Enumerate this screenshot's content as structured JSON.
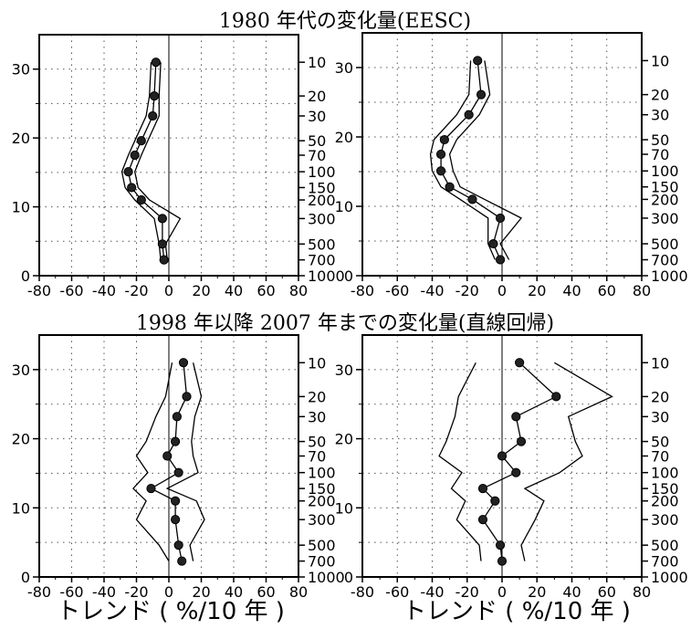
{
  "titles": {
    "top": "1980 年代の変化量(EESC)",
    "bottom": "1998 年以降 2007 年までの変化量(直線回帰)"
  },
  "xlabels": [
    "トレンド ( %/10 年 )",
    "トレンド ( %/10 年 )"
  ],
  "chart_data": [
    {
      "type": "line",
      "xlim": [
        -80,
        80
      ],
      "ylim": [
        0,
        35
      ],
      "x_ticks": [
        "-80",
        "-60",
        "-40",
        "-20",
        "0",
        "20",
        "40",
        "60",
        "80"
      ],
      "y_ticks": [
        "0",
        "10",
        "20",
        "30"
      ],
      "pressure_ticks": [
        {
          "label": "10",
          "alt": 31
        },
        {
          "label": "20",
          "alt": 26.1
        },
        {
          "label": "30",
          "alt": 23.2
        },
        {
          "label": "50",
          "alt": 19.6
        },
        {
          "label": "70",
          "alt": 17.5
        },
        {
          "label": "100",
          "alt": 15.1
        },
        {
          "label": "150",
          "alt": 12.8
        },
        {
          "label": "200",
          "alt": 11
        },
        {
          "label": "300",
          "alt": 8.3
        },
        {
          "label": "500",
          "alt": 4.6
        },
        {
          "label": "700",
          "alt": 2.3
        },
        {
          "label": "1000",
          "alt": 0
        }
      ],
      "grid": true,
      "series": [
        {
          "role": "estimate",
          "x": [
            -8,
            -9,
            -10,
            -17,
            -21,
            -25,
            -23,
            -17,
            -4,
            -4,
            -3
          ],
          "y": [
            31,
            26.1,
            23.2,
            19.6,
            17.5,
            15.1,
            12.8,
            11,
            8.3,
            4.6,
            2.3
          ]
        },
        {
          "role": "lower",
          "x": [
            -11,
            -12,
            -14,
            -21,
            -25,
            -29,
            -27,
            -21,
            -9,
            -6,
            -5
          ],
          "y": [
            31,
            26.1,
            23.2,
            19.6,
            17.5,
            15.1,
            12.8,
            11,
            8.3,
            4.6,
            2.3
          ]
        },
        {
          "role": "upper",
          "x": [
            -5,
            -6,
            -6,
            -13,
            -17,
            -21,
            -19,
            -12,
            7,
            -2,
            -1
          ],
          "y": [
            31,
            26.1,
            23.2,
            19.6,
            17.5,
            15.1,
            12.8,
            11,
            8.3,
            4.6,
            2.3
          ]
        }
      ]
    },
    {
      "type": "line",
      "xlim": [
        -80,
        80
      ],
      "ylim": [
        0,
        35
      ],
      "x_ticks": [
        "-80",
        "-60",
        "-40",
        "-20",
        "0",
        "20",
        "40",
        "60",
        "80"
      ],
      "y_ticks": [
        "0",
        "10",
        "20",
        "30"
      ],
      "pressure_ticks": [
        {
          "label": "10",
          "alt": 31
        },
        {
          "label": "20",
          "alt": 26.1
        },
        {
          "label": "30",
          "alt": 23.2
        },
        {
          "label": "50",
          "alt": 19.6
        },
        {
          "label": "70",
          "alt": 17.5
        },
        {
          "label": "100",
          "alt": 15.1
        },
        {
          "label": "150",
          "alt": 12.8
        },
        {
          "label": "200",
          "alt": 11
        },
        {
          "label": "300",
          "alt": 8.3
        },
        {
          "label": "500",
          "alt": 4.6
        },
        {
          "label": "700",
          "alt": 2.3
        },
        {
          "label": "1000",
          "alt": 0
        }
      ],
      "grid": true,
      "series": [
        {
          "role": "estimate",
          "x": [
            -14,
            -12,
            -19,
            -33,
            -35,
            -35,
            -30,
            -17,
            -1,
            -5,
            -1
          ],
          "y": [
            31,
            26.1,
            23.2,
            19.6,
            17.5,
            15.1,
            12.8,
            11,
            8.3,
            4.6,
            2.3
          ]
        },
        {
          "role": "lower",
          "x": [
            -18,
            -19,
            -26,
            -39,
            -41,
            -40,
            -35,
            -24,
            -8,
            -8,
            -4
          ],
          "y": [
            31,
            26.1,
            23.2,
            19.6,
            17.5,
            15.1,
            12.8,
            11,
            8.3,
            4.6,
            2.3
          ]
        },
        {
          "role": "upper",
          "x": [
            -10,
            -7,
            -13,
            -26,
            -30,
            -28,
            -24,
            -10,
            11,
            -1,
            4
          ],
          "y": [
            31,
            26.1,
            23.2,
            19.6,
            17.5,
            15.1,
            12.8,
            11,
            8.3,
            4.6,
            2.3
          ]
        }
      ]
    },
    {
      "type": "line",
      "xlim": [
        -80,
        80
      ],
      "ylim": [
        0,
        35
      ],
      "x_ticks": [
        "-80",
        "-60",
        "-40",
        "-20",
        "0",
        "20",
        "40",
        "60",
        "80"
      ],
      "y_ticks": [
        "0",
        "10",
        "20",
        "30"
      ],
      "pressure_ticks": [
        {
          "label": "10",
          "alt": 31
        },
        {
          "label": "20",
          "alt": 26.1
        },
        {
          "label": "30",
          "alt": 23.2
        },
        {
          "label": "50",
          "alt": 19.6
        },
        {
          "label": "70",
          "alt": 17.5
        },
        {
          "label": "100",
          "alt": 15.1
        },
        {
          "label": "150",
          "alt": 12.8
        },
        {
          "label": "200",
          "alt": 11
        },
        {
          "label": "300",
          "alt": 8.3
        },
        {
          "label": "500",
          "alt": 4.6
        },
        {
          "label": "700",
          "alt": 2.3
        },
        {
          "label": "1000",
          "alt": 0
        }
      ],
      "grid": true,
      "series": [
        {
          "role": "estimate",
          "x": [
            9,
            11,
            5,
            4,
            -1,
            6,
            -11,
            4,
            4,
            6,
            8
          ],
          "y": [
            31,
            26.1,
            23.2,
            19.6,
            17.5,
            15.1,
            12.8,
            11,
            8.3,
            4.6,
            2.3
          ]
        },
        {
          "role": "lower",
          "x": [
            2,
            -2,
            -8,
            -14,
            -20,
            -13,
            -22,
            -14,
            -20,
            -6,
            0
          ],
          "y": [
            31,
            26.1,
            23.2,
            19.6,
            17.5,
            15.1,
            12.8,
            11,
            8.3,
            4.6,
            2.3
          ]
        },
        {
          "role": "upper",
          "x": [
            15,
            20,
            16,
            14,
            15,
            18,
            -1,
            17,
            22,
            13,
            15
          ],
          "y": [
            31,
            26.1,
            23.2,
            19.6,
            17.5,
            15.1,
            12.8,
            11,
            8.3,
            4.6,
            2.3
          ]
        }
      ]
    },
    {
      "type": "line",
      "xlim": [
        -80,
        80
      ],
      "ylim": [
        0,
        35
      ],
      "x_ticks": [
        "-80",
        "-60",
        "-40",
        "-20",
        "0",
        "20",
        "40",
        "60",
        "80"
      ],
      "y_ticks": [
        "0",
        "10",
        "20",
        "30"
      ],
      "pressure_ticks": [
        {
          "label": "10",
          "alt": 31
        },
        {
          "label": "20",
          "alt": 26.1
        },
        {
          "label": "30",
          "alt": 23.2
        },
        {
          "label": "50",
          "alt": 19.6
        },
        {
          "label": "70",
          "alt": 17.5
        },
        {
          "label": "100",
          "alt": 15.1
        },
        {
          "label": "150",
          "alt": 12.8
        },
        {
          "label": "200",
          "alt": 11
        },
        {
          "label": "300",
          "alt": 8.3
        },
        {
          "label": "500",
          "alt": 4.6
        },
        {
          "label": "700",
          "alt": 2.3
        },
        {
          "label": "1000",
          "alt": 0
        }
      ],
      "grid": true,
      "series": [
        {
          "role": "estimate",
          "x": [
            10,
            31,
            8,
            11,
            0,
            8,
            -11,
            -4,
            -11,
            -1,
            0
          ],
          "y": [
            31,
            26.1,
            23.2,
            19.6,
            17.5,
            15.1,
            12.8,
            11,
            8.3,
            4.6,
            2.3
          ]
        },
        {
          "role": "lower",
          "x": [
            -15,
            -25,
            -27,
            -32,
            -36,
            -23,
            -29,
            -21,
            -26,
            -13,
            -12
          ],
          "y": [
            31,
            26.1,
            23.2,
            19.6,
            17.5,
            15.1,
            12.8,
            11,
            8.3,
            4.6,
            2.3
          ]
        },
        {
          "role": "upper",
          "x": [
            30,
            63,
            38,
            42,
            46,
            33,
            13,
            24,
            19,
            11,
            13
          ],
          "y": [
            31,
            26.1,
            23.2,
            19.6,
            17.5,
            15.1,
            12.8,
            11,
            8.3,
            4.6,
            2.3
          ]
        }
      ]
    }
  ]
}
